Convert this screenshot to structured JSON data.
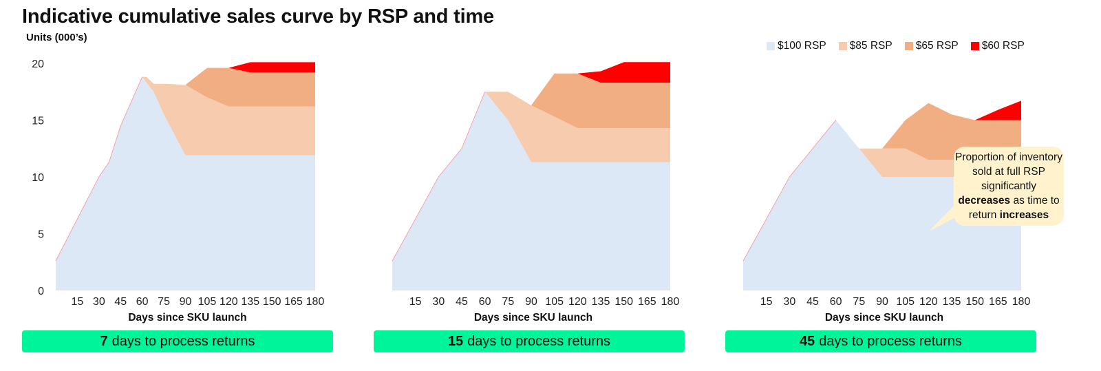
{
  "title": "Indicative cumulative sales curve by RSP and time",
  "y_unit_label": "Units (000’s)",
  "legend": [
    {
      "label": "$100 RSP",
      "color": "#dde8f6"
    },
    {
      "label": "$85 RSP",
      "color": "#f7cbad"
    },
    {
      "label": "$65 RSP",
      "color": "#f2ae83"
    },
    {
      "label": "$60 RSP",
      "color": "#ff0000"
    }
  ],
  "callout": {
    "line1": "Proportion of inventory sold at full RSP significantly",
    "bold1": "decreases",
    "line2": " as time to return ",
    "bold2": "increases"
  },
  "panels": [
    {
      "days": "7",
      "text": " days to process returns"
    },
    {
      "days": "15",
      "text": " days to process returns"
    },
    {
      "days": "45",
      "text": " days to process returns"
    }
  ],
  "accent_color": "#00f59b",
  "chart_data": [
    {
      "type": "area",
      "title": "",
      "xlabel": "Days since SKU launch",
      "ylabel": "Units (000’s)",
      "ylim": [
        0,
        20
      ],
      "yticks": [
        0,
        5,
        10,
        15,
        20
      ],
      "xticks": [
        15,
        30,
        45,
        60,
        75,
        90,
        105,
        120,
        135,
        150,
        165,
        180
      ],
      "stacked": true,
      "series": [
        {
          "name": "$100 RSP",
          "x": [
            0,
            15,
            30,
            37,
            45,
            60,
            63,
            68,
            75,
            90,
            105,
            120,
            135,
            150,
            165,
            180
          ],
          "values": [
            2.6,
            6.3,
            10,
            11.3,
            14.5,
            18.8,
            18.3,
            17.5,
            15.5,
            11.9,
            11.9,
            11.9,
            11.9,
            11.9,
            11.9,
            11.9
          ]
        },
        {
          "name": "$85 RSP",
          "x": [
            0,
            15,
            30,
            37,
            45,
            60,
            63,
            68,
            75,
            90,
            105,
            120,
            135,
            150,
            165,
            180
          ],
          "values": [
            0,
            0,
            0,
            0,
            0,
            0,
            0.5,
            0.7,
            2.7,
            6.2,
            5.1,
            4.3,
            4.3,
            4.3,
            4.3,
            4.3
          ]
        },
        {
          "name": "$65 RSP",
          "x": [
            0,
            15,
            30,
            37,
            45,
            60,
            63,
            68,
            75,
            90,
            105,
            120,
            135,
            150,
            165,
            180
          ],
          "values": [
            0,
            0,
            0,
            0,
            0,
            0,
            0,
            0,
            0,
            0,
            2.6,
            3.4,
            3.0,
            3.0,
            3.0,
            3.0
          ]
        },
        {
          "name": "$60 RSP",
          "x": [
            0,
            15,
            30,
            37,
            45,
            60,
            63,
            68,
            75,
            90,
            105,
            120,
            135,
            150,
            165,
            180
          ],
          "values": [
            0,
            0,
            0,
            0,
            0,
            0,
            0,
            0,
            0,
            0,
            0,
            0,
            0.9,
            0.9,
            0.9,
            0.9
          ]
        }
      ]
    },
    {
      "type": "area",
      "title": "",
      "xlabel": "Days since SKU launch",
      "ylabel": "Units (000’s)",
      "ylim": [
        0,
        20
      ],
      "yticks": [
        0,
        5,
        10,
        15,
        20
      ],
      "xticks": [
        15,
        30,
        45,
        60,
        75,
        90,
        105,
        120,
        135,
        150,
        165,
        180
      ],
      "stacked": true,
      "series": [
        {
          "name": "$100 RSP",
          "x": [
            0,
            15,
            30,
            45,
            60,
            75,
            90,
            105,
            120,
            135,
            150,
            165,
            180
          ],
          "values": [
            2.6,
            6.3,
            10,
            12.5,
            17.5,
            15.0,
            11.3,
            11.3,
            11.3,
            11.3,
            11.3,
            11.3,
            11.3
          ]
        },
        {
          "name": "$85 RSP",
          "x": [
            0,
            15,
            30,
            45,
            60,
            75,
            90,
            105,
            120,
            135,
            150,
            165,
            180
          ],
          "values": [
            0,
            0,
            0,
            0,
            0,
            2.5,
            5.0,
            4.0,
            3.0,
            3.0,
            3.0,
            3.0,
            3.0
          ]
        },
        {
          "name": "$65 RSP",
          "x": [
            0,
            15,
            30,
            45,
            60,
            75,
            90,
            105,
            120,
            135,
            150,
            165,
            180
          ],
          "values": [
            0,
            0,
            0,
            0,
            0,
            0,
            0,
            3.8,
            4.8,
            4.0,
            4.0,
            4.0,
            4.0
          ]
        },
        {
          "name": "$60 RSP",
          "x": [
            0,
            15,
            30,
            45,
            60,
            75,
            90,
            105,
            120,
            135,
            150,
            165,
            180
          ],
          "values": [
            0,
            0,
            0,
            0,
            0,
            0,
            0,
            0,
            0,
            1.0,
            1.8,
            1.8,
            1.8
          ]
        }
      ]
    },
    {
      "type": "area",
      "title": "",
      "xlabel": "Days since SKU launch",
      "ylabel": "Units (000’s)",
      "ylim": [
        0,
        20
      ],
      "yticks": [
        0,
        5,
        10,
        15,
        20
      ],
      "xticks": [
        15,
        30,
        45,
        60,
        75,
        90,
        105,
        120,
        135,
        150,
        165,
        180
      ],
      "stacked": true,
      "series": [
        {
          "name": "$100 RSP",
          "x": [
            0,
            15,
            30,
            45,
            60,
            75,
            90,
            105,
            120,
            135,
            150,
            165,
            180
          ],
          "values": [
            2.6,
            6.3,
            10,
            12.5,
            15.0,
            12.5,
            10.0,
            10.0,
            10.0,
            10.0,
            10.0,
            10.0,
            10.0
          ]
        },
        {
          "name": "$85 RSP",
          "x": [
            0,
            15,
            30,
            45,
            60,
            75,
            90,
            105,
            120,
            135,
            150,
            165,
            180
          ],
          "values": [
            0,
            0,
            0,
            0,
            0,
            0,
            2.5,
            2.5,
            1.5,
            1.5,
            1.5,
            1.5,
            1.5
          ]
        },
        {
          "name": "$65 RSP",
          "x": [
            0,
            15,
            30,
            45,
            60,
            75,
            90,
            105,
            120,
            135,
            150,
            165,
            180
          ],
          "values": [
            0,
            0,
            0,
            0,
            0,
            0,
            0,
            2.5,
            5.0,
            4.0,
            3.5,
            3.5,
            3.5
          ]
        },
        {
          "name": "$60 RSP",
          "x": [
            0,
            15,
            30,
            45,
            60,
            75,
            90,
            105,
            120,
            135,
            150,
            165,
            180
          ],
          "values": [
            0,
            0,
            0,
            0,
            0,
            0,
            0,
            0,
            0,
            0,
            0,
            0.9,
            1.7
          ]
        }
      ]
    }
  ]
}
